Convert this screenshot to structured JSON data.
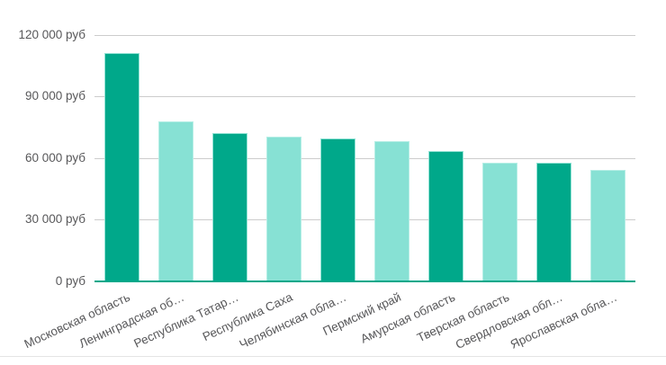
{
  "chart_data": {
    "type": "bar",
    "title": "",
    "xlabel": "",
    "ylabel": "",
    "unit": "руб",
    "categories": [
      "Московская область",
      "Ленинградская об…",
      "Республика Татар…",
      "Республика Саха",
      "Челябинская обла…",
      "Пермский край",
      "Амурская область",
      "Тверская область",
      "Свердловская обл…",
      "Ярославская обла…"
    ],
    "values": [
      111000,
      78000,
      72000,
      70500,
      69500,
      68000,
      63500,
      57500,
      57600,
      54000
    ],
    "ylim": [
      0,
      120000
    ],
    "y_ticks": [
      {
        "value": 0,
        "label": "0 руб"
      },
      {
        "value": 30000,
        "label": "30 000 руб"
      },
      {
        "value": 60000,
        "label": "60 000 руб"
      },
      {
        "value": 90000,
        "label": "90 000 руб"
      },
      {
        "value": 120000,
        "label": "120 000 руб"
      }
    ],
    "grid": true,
    "legend": "none",
    "colors": {
      "bar_dark": "#00a88a",
      "bar_light": "#87e1d4",
      "baseline": "#00a88a",
      "gridline": "#cccccc",
      "tick_text": "#58585a",
      "divider": "#e4e4e4"
    }
  }
}
